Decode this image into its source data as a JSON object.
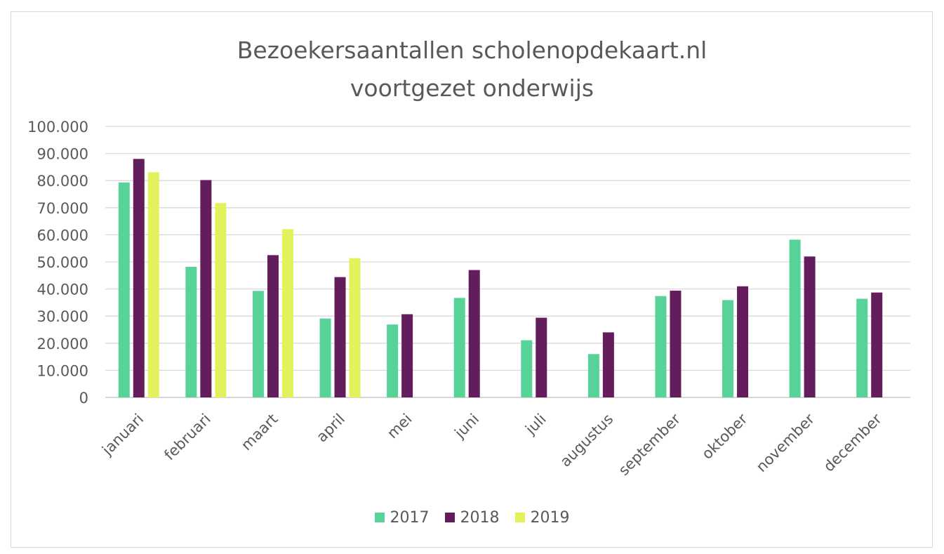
{
  "chart_data": {
    "type": "bar",
    "title": [
      "Bezoekersaantallen scholenopdekaart.nl",
      "voortgezet onderwijs"
    ],
    "categories": [
      "januari",
      "februari",
      "maart",
      "april",
      "mei",
      "juni",
      "juli",
      "augustus",
      "september",
      "oktober",
      "november",
      "december"
    ],
    "series": [
      {
        "name": "2017",
        "color": "#57d39a",
        "values": [
          79300,
          48200,
          39300,
          29100,
          26900,
          36700,
          21100,
          16000,
          37400,
          35900,
          58200,
          36400
        ]
      },
      {
        "name": "2018",
        "color": "#641d5c",
        "values": [
          88000,
          80200,
          52500,
          44400,
          30700,
          47000,
          29400,
          24000,
          39400,
          41000,
          52000,
          38700
        ]
      },
      {
        "name": "2019",
        "color": "#e3f25c",
        "values": [
          83100,
          71700,
          62100,
          51400,
          null,
          null,
          null,
          null,
          null,
          null,
          null,
          null
        ]
      }
    ],
    "ylim": [
      0,
      100000
    ],
    "yticks": [
      0,
      10000,
      20000,
      30000,
      40000,
      50000,
      60000,
      70000,
      80000,
      90000,
      100000
    ],
    "ytick_labels": [
      "0",
      "10.000",
      "20.000",
      "30.000",
      "40.000",
      "50.000",
      "60.000",
      "70.000",
      "80.000",
      "90.000",
      "100.000"
    ],
    "grid": true,
    "legend_position": "bottom"
  }
}
